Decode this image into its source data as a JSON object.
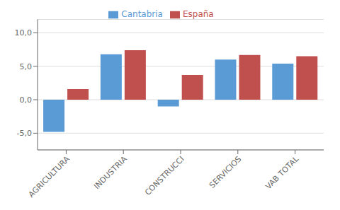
{
  "chart_data": {
    "type": "bar",
    "categories": [
      "AGRICULTURA",
      "INDUSTRIA",
      "CONSTRUCCI",
      "SERVICIOS",
      "VAB TOTAL"
    ],
    "series": [
      {
        "name": "Cantabria",
        "color": "#5B9BD5",
        "values": [
          -4.8,
          6.8,
          -1.0,
          6.0,
          5.4
        ]
      },
      {
        "name": "España",
        "color": "#C0504D",
        "values": [
          1.6,
          7.4,
          3.7,
          6.7,
          6.5
        ]
      }
    ],
    "ylim": [
      -7.5,
      12
    ],
    "yticks": [
      {
        "value": -5.0,
        "label": "-5,0"
      },
      {
        "value": 0.0,
        "label": "0,0"
      },
      {
        "value": 5.0,
        "label": "5,0"
      },
      {
        "value": 10.0,
        "label": "10,0"
      }
    ],
    "grid": true,
    "legend": "top"
  }
}
